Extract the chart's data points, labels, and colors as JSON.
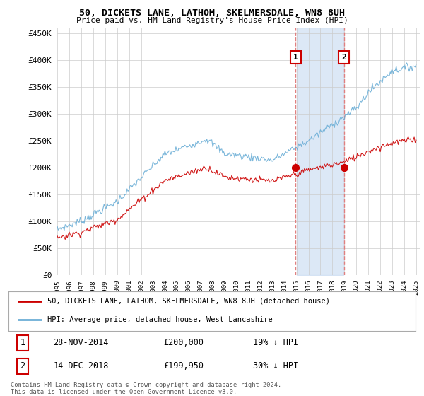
{
  "title": "50, DICKETS LANE, LATHOM, SKELMERSDALE, WN8 8UH",
  "subtitle": "Price paid vs. HM Land Registry's House Price Index (HPI)",
  "ylim": [
    0,
    460000
  ],
  "yticks": [
    0,
    50000,
    100000,
    150000,
    200000,
    250000,
    300000,
    350000,
    400000,
    450000
  ],
  "year_start": 1995,
  "year_end": 2025,
  "purchase_1_date": 2014.92,
  "purchase_1_value": 200000,
  "purchase_2_date": 2018.96,
  "purchase_2_value": 199950,
  "hpi_color": "#6baed6",
  "price_color": "#cc0000",
  "shade_color": "#c6d9f0",
  "vline_color": "#e08080",
  "legend_line1": "50, DICKETS LANE, LATHOM, SKELMERSDALE, WN8 8UH (detached house)",
  "legend_line2": "HPI: Average price, detached house, West Lancashire",
  "table_row1_num": "1",
  "table_row1_date": "28-NOV-2014",
  "table_row1_price": "£200,000",
  "table_row1_hpi": "19% ↓ HPI",
  "table_row2_num": "2",
  "table_row2_date": "14-DEC-2018",
  "table_row2_price": "£199,950",
  "table_row2_hpi": "30% ↓ HPI",
  "footer": "Contains HM Land Registry data © Crown copyright and database right 2024.\nThis data is licensed under the Open Government Licence v3.0.",
  "background_color": "#ffffff",
  "grid_color": "#cccccc"
}
